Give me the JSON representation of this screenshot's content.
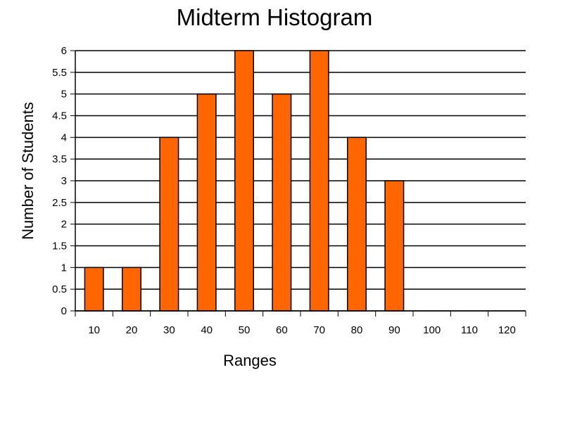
{
  "chart_data": {
    "type": "bar",
    "title": "Midterm Histogram",
    "xlabel": "Ranges",
    "ylabel": "Number of Students",
    "categories": [
      "10",
      "20",
      "30",
      "40",
      "50",
      "60",
      "70",
      "80",
      "90",
      "100",
      "110",
      "120"
    ],
    "values": [
      1,
      1,
      4,
      5,
      6,
      5,
      6,
      4,
      3,
      0,
      0,
      0
    ],
    "ylim": [
      0,
      6
    ],
    "yticks": [
      "0",
      "0.5",
      "1",
      "1.5",
      "2",
      "2.5",
      "3",
      "3.5",
      "4",
      "4.5",
      "5",
      "5.5",
      "6"
    ],
    "grid": true,
    "legend": "none",
    "bar_color": "#ff6600",
    "bar_edge_color": "#000000"
  }
}
